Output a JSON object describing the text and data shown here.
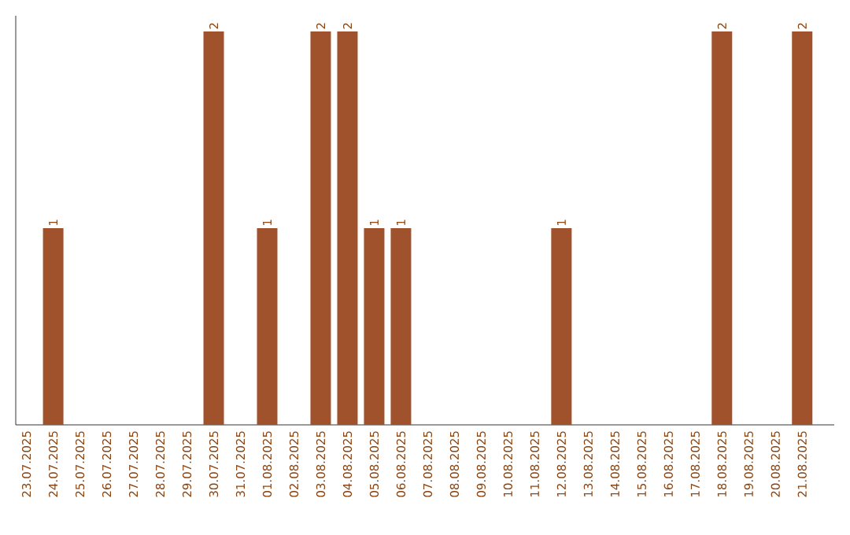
{
  "chart_data": {
    "type": "bar",
    "categories": [
      "23.07.2025",
      "24.07.2025",
      "25.07.2025",
      "26.07.2025",
      "27.07.2025",
      "28.07.2025",
      "29.07.2025",
      "30.07.2025",
      "31.07.2025",
      "01.08.2025",
      "02.08.2025",
      "03.08.2025",
      "04.08.2025",
      "05.08.2025",
      "06.08.2025",
      "07.08.2025",
      "08.08.2025",
      "09.08.2025",
      "10.08.2025",
      "11.08.2025",
      "12.08.2025",
      "13.08.2025",
      "14.08.2025",
      "15.08.2025",
      "16.08.2025",
      "17.08.2025",
      "18.08.2025",
      "19.08.2025",
      "20.08.2025",
      "21.08.2025"
    ],
    "values": [
      0,
      1,
      0,
      0,
      0,
      0,
      0,
      2,
      0,
      1,
      0,
      2,
      2,
      1,
      1,
      0,
      0,
      0,
      0,
      0,
      1,
      0,
      0,
      0,
      0,
      0,
      2,
      0,
      0,
      2
    ],
    "value_labels": [
      null,
      "1",
      null,
      null,
      null,
      null,
      null,
      "2",
      null,
      "1",
      null,
      "2",
      "2",
      "1",
      "1",
      null,
      null,
      null,
      null,
      null,
      "1",
      null,
      null,
      null,
      null,
      null,
      "2",
      null,
      null,
      "2"
    ],
    "color": "#a0522d",
    "ylim": [
      0,
      2.08
    ],
    "tick_labels": "x"
  }
}
